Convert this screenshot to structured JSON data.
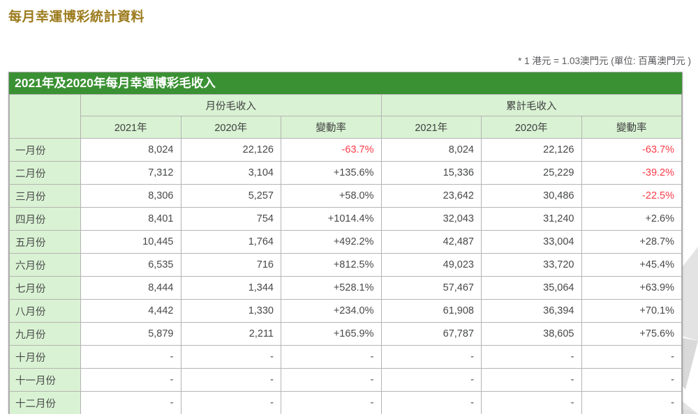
{
  "page": {
    "title": "每月幸運博彩統計資料",
    "note": "* 1 港元 = 1.03澳門元 (單位: 百萬澳門元 )"
  },
  "table": {
    "caption": "2021年及2020年每月幸運博彩毛收入",
    "group_headers": [
      "月份毛收入",
      "累計毛收入"
    ],
    "sub_headers": [
      "2021年",
      "2020年",
      "變動率"
    ],
    "colors": {
      "caption_bg": "#3a9133",
      "header_bg": "#d9f2d3",
      "negative_change": "#fb3a47",
      "title_gold": "#9c7b1d"
    },
    "rows": [
      {
        "month": "一月份",
        "m2021": "8,024",
        "m2020": "22,126",
        "mchg": "-63.7%",
        "c2021": "8,024",
        "c2020": "22,126",
        "cchg": "-63.7%"
      },
      {
        "month": "二月份",
        "m2021": "7,312",
        "m2020": "3,104",
        "mchg": "+135.6%",
        "c2021": "15,336",
        "c2020": "25,229",
        "cchg": "-39.2%"
      },
      {
        "month": "三月份",
        "m2021": "8,306",
        "m2020": "5,257",
        "mchg": "+58.0%",
        "c2021": "23,642",
        "c2020": "30,486",
        "cchg": "-22.5%"
      },
      {
        "month": "四月份",
        "m2021": "8,401",
        "m2020": "754",
        "mchg": "+1014.4%",
        "c2021": "32,043",
        "c2020": "31,240",
        "cchg": "+2.6%"
      },
      {
        "month": "五月份",
        "m2021": "10,445",
        "m2020": "1,764",
        "mchg": "+492.2%",
        "c2021": "42,487",
        "c2020": "33,004",
        "cchg": "+28.7%"
      },
      {
        "month": "六月份",
        "m2021": "6,535",
        "m2020": "716",
        "mchg": "+812.5%",
        "c2021": "49,023",
        "c2020": "33,720",
        "cchg": "+45.4%"
      },
      {
        "month": "七月份",
        "m2021": "8,444",
        "m2020": "1,344",
        "mchg": "+528.1%",
        "c2021": "57,467",
        "c2020": "35,064",
        "cchg": "+63.9%"
      },
      {
        "month": "八月份",
        "m2021": "4,442",
        "m2020": "1,330",
        "mchg": "+234.0%",
        "c2021": "61,908",
        "c2020": "36,394",
        "cchg": "+70.1%"
      },
      {
        "month": "九月份",
        "m2021": "5,879",
        "m2020": "2,211",
        "mchg": "+165.9%",
        "c2021": "67,787",
        "c2020": "38,605",
        "cchg": "+75.6%"
      },
      {
        "month": "十月份",
        "m2021": "-",
        "m2020": "-",
        "mchg": "-",
        "c2021": "-",
        "c2020": "-",
        "cchg": "-"
      },
      {
        "month": "十一月份",
        "m2021": "-",
        "m2020": "-",
        "mchg": "-",
        "c2021": "-",
        "c2020": "-",
        "cchg": "-"
      },
      {
        "month": "十二月份",
        "m2021": "-",
        "m2020": "-",
        "mchg": "-",
        "c2021": "-",
        "c2020": "-",
        "cchg": "-"
      }
    ]
  }
}
